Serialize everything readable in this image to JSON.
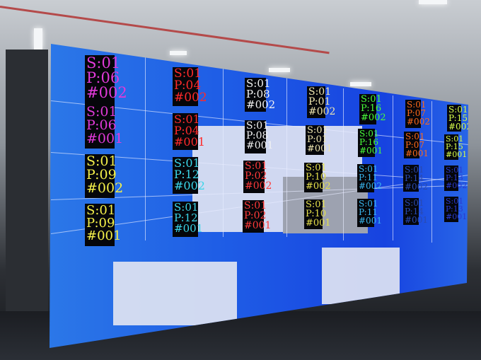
{
  "scene": "led-video-wall-test-pattern",
  "colors": {
    "wall_blue": "#1f5ee6",
    "tile_bg": "#05060a"
  },
  "tiles": [
    {
      "s": "S:01",
      "p": "P:06",
      "n": "#002",
      "color": "#e03ad8"
    },
    {
      "s": "S:01",
      "p": "P:04",
      "n": "#002",
      "color": "#ff2a2a"
    },
    {
      "s": "S:01",
      "p": "P:08",
      "n": "#002",
      "color": "#f2f2f2"
    },
    {
      "s": "S:01",
      "p": "P:01",
      "n": "#002",
      "color": "#efe6b0"
    },
    {
      "s": "S:01",
      "p": "P:16",
      "n": "#002",
      "color": "#49ff3a"
    },
    {
      "s": "S:01",
      "p": "P:07",
      "n": "#002",
      "color": "#ff6a1a"
    },
    {
      "s": "S:01",
      "p": "P:15",
      "n": "#002",
      "color": "#d8ff4a"
    },
    {
      "s": "S:01",
      "p": "P:06",
      "n": "#001",
      "color": "#e03ad8"
    },
    {
      "s": "S:01",
      "p": "P:04",
      "n": "#001",
      "color": "#ff2a2a"
    },
    {
      "s": "S:01",
      "p": "P:08",
      "n": "#001",
      "color": "#f2f2f2"
    },
    {
      "s": "S:01",
      "p": "P:01",
      "n": "#001",
      "color": "#efe6b0"
    },
    {
      "s": "S:01",
      "p": "P:16",
      "n": "#001",
      "color": "#49ff3a"
    },
    {
      "s": "S:01",
      "p": "P:07",
      "n": "#001",
      "color": "#ff6a1a"
    },
    {
      "s": "S:01",
      "p": "P:15",
      "n": "#001",
      "color": "#d8ff4a"
    },
    {
      "s": "S:01",
      "p": "P:09",
      "n": "#002",
      "color": "#f4f04a"
    },
    {
      "s": "S:01",
      "p": "P:12",
      "n": "#002",
      "color": "#3ad6e8"
    },
    {
      "s": "S:01",
      "p": "P:02",
      "n": "#002",
      "color": "#ff3a3a"
    },
    {
      "s": "S:01",
      "p": "P:10",
      "n": "#002",
      "color": "#e6e04a"
    },
    {
      "s": "S:01",
      "p": "P:11",
      "n": "#002",
      "color": "#3ab8f0"
    },
    {
      "s": "S:01",
      "p": "P:14",
      "n": "#002",
      "color": "#2a4ab0"
    },
    {
      "s": "S:01",
      "p": "P:13",
      "n": "#002",
      "color": "#2a3ad0"
    },
    {
      "s": "S:01",
      "p": "P:09",
      "n": "#001",
      "color": "#f4f04a"
    },
    {
      "s": "S:01",
      "p": "P:12",
      "n": "#001",
      "color": "#3ad6e8"
    },
    {
      "s": "S:01",
      "p": "P:02",
      "n": "#001",
      "color": "#ff3a3a"
    },
    {
      "s": "S:01",
      "p": "P:10",
      "n": "#001",
      "color": "#e6e04a"
    },
    {
      "s": "S:01",
      "p": "P:11",
      "n": "#001",
      "color": "#3ab8f0"
    },
    {
      "s": "S:01",
      "p": "P:14",
      "n": "#001",
      "color": "#2a4ab0"
    },
    {
      "s": "S:01",
      "p": "P:13",
      "n": "#001",
      "color": "#2a3ad0"
    }
  ]
}
